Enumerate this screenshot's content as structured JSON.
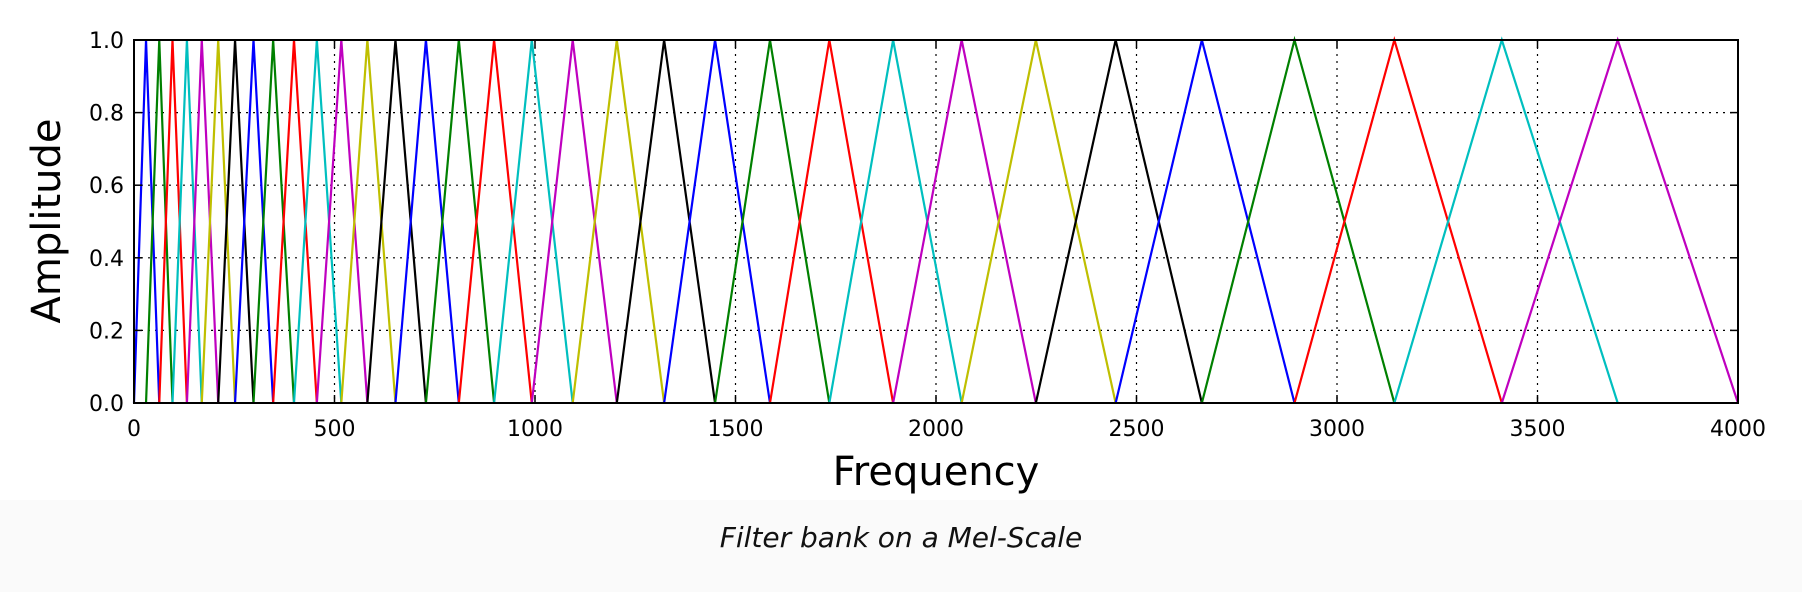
{
  "chart_data": {
    "type": "line",
    "title": "",
    "xlabel": "Frequency",
    "ylabel": "Amplitude",
    "caption": "Filter bank on a Mel-Scale",
    "xlim": [
      0,
      4000
    ],
    "ylim": [
      0.0,
      1.0
    ],
    "x_ticks": [
      "0",
      "500",
      "1000",
      "1500",
      "2000",
      "2500",
      "3000",
      "3500",
      "4000"
    ],
    "y_ticks": [
      "0.0",
      "0.2",
      "0.4",
      "0.6",
      "0.8",
      "1.0"
    ],
    "grid": true,
    "grid_style": "dotted",
    "legend": "none",
    "color_cycle": [
      "#0000ff",
      "#008000",
      "#ff0000",
      "#00bfbf",
      "#bf00bf",
      "#bfbf00",
      "#000000"
    ],
    "filter_points_hz": [
      0,
      30,
      63,
      96,
      132,
      169,
      210,
      252,
      298,
      347,
      399,
      456,
      517,
      582,
      652,
      728,
      810,
      898,
      992,
      1094,
      1204,
      1322,
      1449,
      1586,
      1734,
      1893,
      2064,
      2249,
      2448,
      2663,
      2894,
      3143,
      3411,
      3700,
      4000
    ],
    "filter_peak": 1.0
  }
}
